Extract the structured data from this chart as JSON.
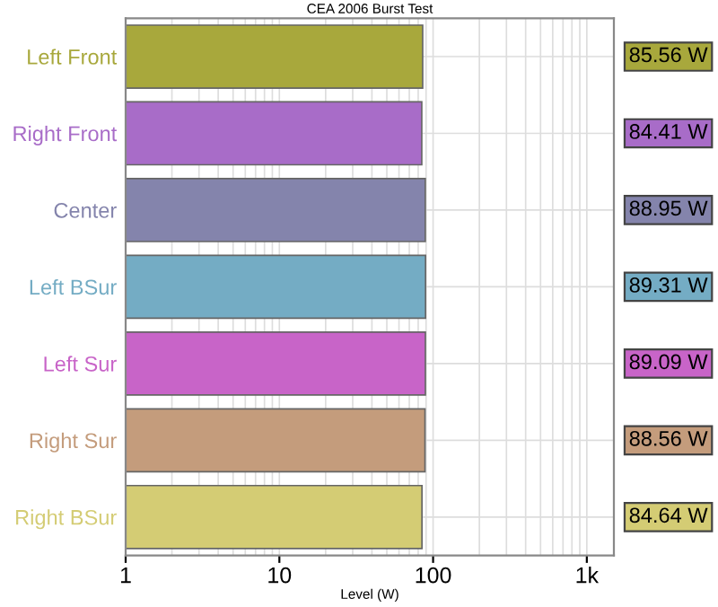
{
  "chart_data": {
    "type": "bar",
    "orientation": "horizontal",
    "title": "CEA 2006 Burst Test",
    "xlabel": "Level (W)",
    "categories": [
      "Left Front",
      "Right Front",
      "Center",
      "Left BSur",
      "Left Sur",
      "Right Sur",
      "Right BSur"
    ],
    "values": [
      85.56,
      84.41,
      88.95,
      89.31,
      89.09,
      88.56,
      84.64
    ],
    "value_labels": [
      "85.56 W",
      "84.41 W",
      "88.95 W",
      "89.31 W",
      "89.09 W",
      "88.56 W",
      "84.64 W"
    ],
    "colors": [
      "#a8a83c",
      "#a86cc8",
      "#8484ac",
      "#74acc4",
      "#c864c8",
      "#c49c7c",
      "#d4cc74"
    ],
    "log": "x",
    "xlim": [
      1,
      1500
    ],
    "xticks": [
      1,
      10,
      100,
      {
        "value": 1000,
        "label": "1k"
      }
    ],
    "grid": true
  }
}
